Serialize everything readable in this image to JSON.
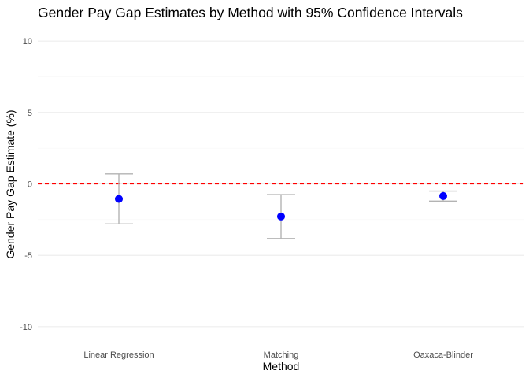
{
  "chart_data": {
    "type": "errorbar",
    "title": "Gender Pay Gap Estimates by Method with 95% Confidence Intervals",
    "xlabel": "Method",
    "ylabel": "Gender Pay Gap Estimate (%)",
    "categories": [
      "Linear Regression",
      "Matching",
      "Oaxaca-Blinder"
    ],
    "estimates": [
      -1.05,
      -2.28,
      -0.85
    ],
    "ci_lower": [
      -2.8,
      -3.82,
      -1.2
    ],
    "ci_upper": [
      0.7,
      -0.75,
      -0.5
    ],
    "ylim": [
      -11,
      11
    ],
    "yticks": [
      -10,
      -5,
      0,
      5,
      10
    ],
    "ytick_labels": [
      "-10",
      "-5",
      "0",
      "5",
      "10"
    ],
    "reference_line": {
      "y": 0,
      "style": "dashed",
      "color": "#ff0000"
    },
    "point_color": "#0000ff",
    "errorbar_color": "#b3b3b3",
    "grid": true,
    "legend": "none"
  }
}
